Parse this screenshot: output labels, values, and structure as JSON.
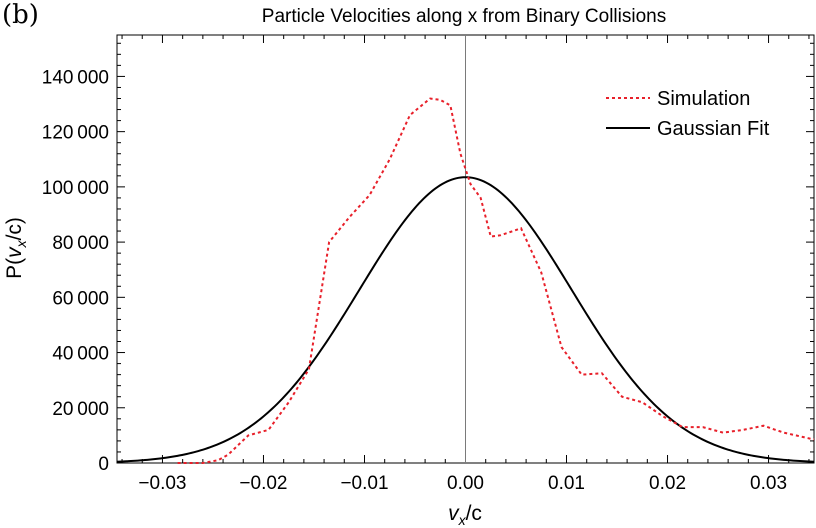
{
  "panel_label": "(b)",
  "chart_data": {
    "type": "line",
    "title": "Particle Velocities along x from Binary Collisions",
    "xlabel_main": "v",
    "xlabel_sub": "x",
    "xlabel_tail": "/c",
    "ylabel_prefix": "P(",
    "ylabel_main": "v",
    "ylabel_sub": "x",
    "ylabel_tail": "/c)",
    "xlim": [
      -0.0345,
      0.0345
    ],
    "ylim": [
      0,
      155000
    ],
    "xticks": [
      -0.03,
      -0.02,
      -0.01,
      0.0,
      0.01,
      0.02,
      0.03
    ],
    "xtick_labels": [
      "−0.03",
      "−0.02",
      "−0.01",
      "0.00",
      "0.01",
      "0.02",
      "0.03"
    ],
    "yticks": [
      0,
      20000,
      40000,
      60000,
      80000,
      100000,
      120000,
      140000
    ],
    "ytick_labels": [
      "0",
      "20 000",
      "40 000",
      "60 000",
      "80 000",
      "100 000",
      "120 000",
      "140 000"
    ],
    "series": [
      {
        "name": "Simulation",
        "style": "dashed",
        "color": "#e8202a",
        "x": [
          -0.0285,
          -0.026,
          -0.0245,
          -0.0235,
          -0.0215,
          -0.0195,
          -0.0175,
          -0.0155,
          -0.0145,
          -0.0135,
          -0.0115,
          -0.0095,
          -0.0075,
          -0.0055,
          -0.0035,
          -0.0025,
          -0.0015,
          -0.0005,
          0.0005,
          0.0015,
          0.0025,
          0.0035,
          0.0055,
          0.0075,
          0.0095,
          0.0115,
          0.0135,
          0.0155,
          0.0175,
          0.0195,
          0.0215,
          0.0235,
          0.0255,
          0.0275,
          0.0295,
          0.0315,
          0.0345
        ],
        "y": [
          0,
          0,
          1000,
          3000,
          10000,
          12000,
          22000,
          34000,
          57000,
          80000,
          89000,
          97000,
          110000,
          126000,
          132000,
          131500,
          129500,
          112000,
          101000,
          96000,
          82000,
          82500,
          85000,
          69000,
          42000,
          32000,
          32500,
          24000,
          22000,
          17000,
          13000,
          13000,
          11000,
          12000,
          13500,
          11000,
          8500
        ]
      },
      {
        "name": "Gaussian Fit",
        "style": "solid",
        "color": "#000000",
        "amplitude": 103500,
        "mean": 0.0,
        "sigma": 0.0105
      }
    ],
    "legend": [
      "Simulation",
      "Gaussian Fit"
    ],
    "legend_position": "top-right",
    "vertical_reference_line_x": 0.0
  }
}
